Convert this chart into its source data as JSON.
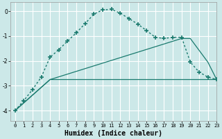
{
  "background_color": "#cce8e8",
  "grid_color": "#ffffff",
  "line_color": "#1a7a6e",
  "xlabel": "Humidex (Indice chaleur)",
  "xlim": [
    -0.5,
    23
  ],
  "ylim": [
    -4.4,
    0.35
  ],
  "yticks": [
    0,
    -1,
    -2,
    -3,
    -4
  ],
  "xticks": [
    0,
    1,
    2,
    3,
    4,
    5,
    6,
    7,
    8,
    9,
    10,
    11,
    12,
    13,
    14,
    15,
    16,
    17,
    18,
    19,
    20,
    21,
    22,
    23
  ],
  "curve1_x": [
    0,
    1,
    2,
    3,
    4,
    5,
    6,
    7,
    8,
    9,
    10,
    11,
    12,
    13,
    14,
    15,
    16,
    17,
    18,
    19,
    20,
    21,
    22,
    23
  ],
  "curve1_y": [
    -4.0,
    -3.6,
    -3.15,
    -2.65,
    -1.85,
    -1.55,
    -1.2,
    -0.87,
    -0.5,
    -0.12,
    0.05,
    0.07,
    -0.08,
    -0.3,
    -0.52,
    -0.78,
    -1.05,
    -1.1,
    -1.05,
    -1.05,
    -2.05,
    -2.45,
    -2.65,
    -2.75
  ],
  "curve2_x": [
    0,
    4,
    10,
    21,
    23
  ],
  "curve2_y": [
    -4.0,
    -2.75,
    -2.75,
    -2.75,
    -2.75
  ],
  "curve3_x": [
    0,
    4,
    19,
    20,
    22,
    23
  ],
  "curve3_y": [
    -4.0,
    -2.75,
    -1.1,
    -1.1,
    -2.05,
    -2.75
  ]
}
